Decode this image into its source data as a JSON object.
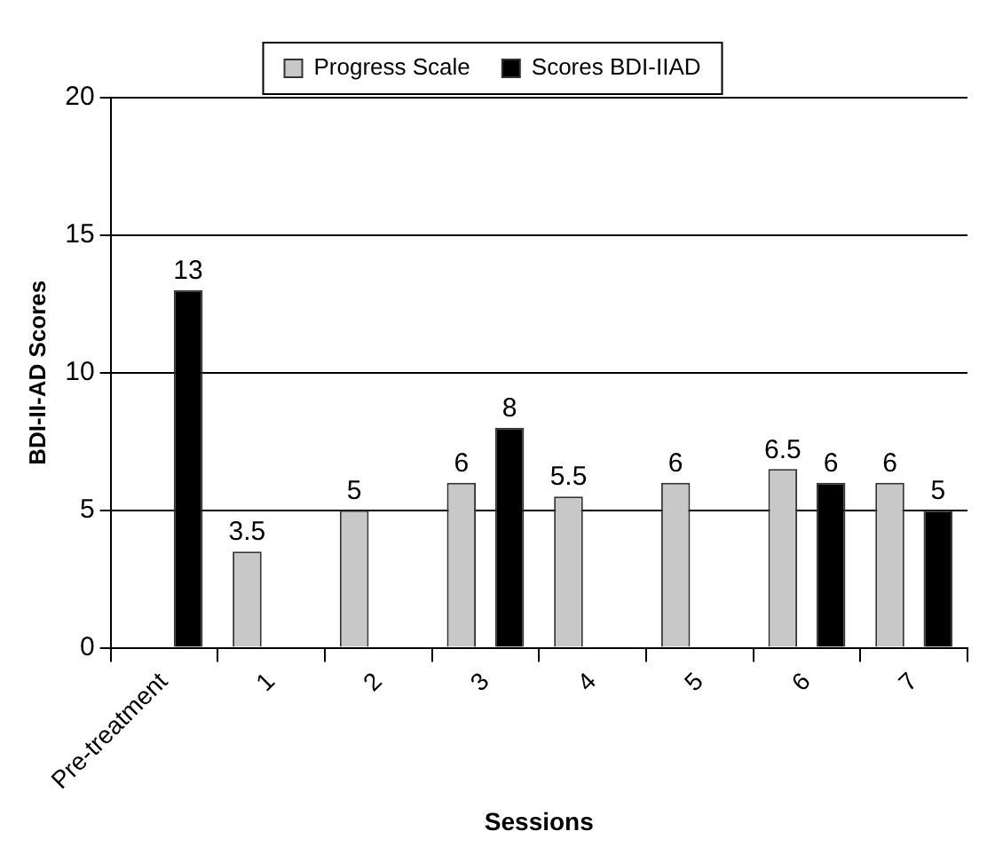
{
  "chart_data": {
    "type": "bar",
    "xlabel": "Sessions",
    "ylabel": "BDI-II-AD Scores",
    "categories": [
      "Pre-treatment",
      "1",
      "2",
      "3",
      "4",
      "5",
      "6",
      "7"
    ],
    "series": [
      {
        "name": "Progress Scale",
        "color": "#c8c8c8",
        "values": [
          null,
          3.5,
          5,
          6,
          5.5,
          6,
          6.5,
          6
        ]
      },
      {
        "name": "Scores BDI-IIAD",
        "color": "#000000",
        "values": [
          13,
          null,
          null,
          8,
          null,
          null,
          6,
          5
        ]
      }
    ],
    "ylim": [
      0,
      20
    ],
    "yticks": [
      0,
      5,
      10,
      15,
      20
    ],
    "grid": "y",
    "legend": "top",
    "data_labels": true
  }
}
